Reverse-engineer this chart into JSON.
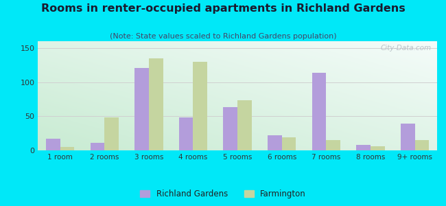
{
  "title": "Rooms in renter-occupied apartments in Richland Gardens",
  "subtitle": "(Note: State values scaled to Richland Gardens population)",
  "categories": [
    "1 room",
    "2 rooms",
    "3 rooms",
    "4 rooms",
    "5 rooms",
    "6 rooms",
    "7 rooms",
    "8 rooms",
    "9+ rooms"
  ],
  "richland_values": [
    17,
    11,
    121,
    48,
    63,
    22,
    114,
    8,
    39
  ],
  "farmington_values": [
    5,
    48,
    135,
    130,
    73,
    19,
    15,
    6,
    15
  ],
  "richland_color": "#b39ddb",
  "farmington_color": "#c5d5a0",
  "ylim": [
    0,
    160
  ],
  "yticks": [
    0,
    50,
    100,
    150
  ],
  "background_outer": "#00e8f8",
  "grid_color": "#d0d0d0",
  "title_fontsize": 11.5,
  "subtitle_fontsize": 8,
  "watermark_text": "City-Data.com",
  "legend_richland": "Richland Gardens",
  "legend_farmington": "Farmington",
  "bar_width": 0.32
}
